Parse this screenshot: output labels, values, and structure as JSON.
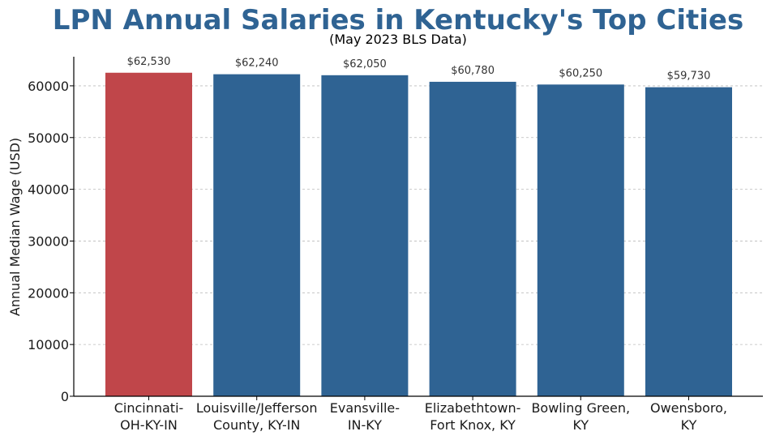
{
  "chart_data": {
    "type": "bar",
    "title": "LPN Annual Salaries in Kentucky's Top Cities",
    "subtitle": "(May 2023 BLS Data)",
    "xlabel": "",
    "ylabel": "Annual Median Wage (USD)",
    "ylim": [
      0,
      65625
    ],
    "yticks": [
      0,
      10000,
      20000,
      30000,
      40000,
      50000,
      60000
    ],
    "grid": "horizontal dashed",
    "categories": [
      [
        "Cincinnati-",
        "OH-KY-IN"
      ],
      [
        "Louisville/Jefferson",
        "County, KY-IN"
      ],
      [
        "Evansville-",
        "IN-KY"
      ],
      [
        "Elizabethtown-",
        "Fort Knox, KY"
      ],
      [
        "Bowling Green,",
        "KY"
      ],
      [
        "Owensboro,",
        "KY"
      ]
    ],
    "values": [
      62530,
      62240,
      62050,
      60780,
      60250,
      59730
    ],
    "value_labels": [
      "$62,530",
      "$62,240",
      "$62,050",
      "$60,780",
      "$60,250",
      "$59,730"
    ],
    "colors": {
      "highlight": "#C0464A",
      "default": "#2F6393",
      "title": "#2F6393",
      "grid": "#bbbbbb",
      "axis": "#000000"
    },
    "highlight_index": 0
  }
}
